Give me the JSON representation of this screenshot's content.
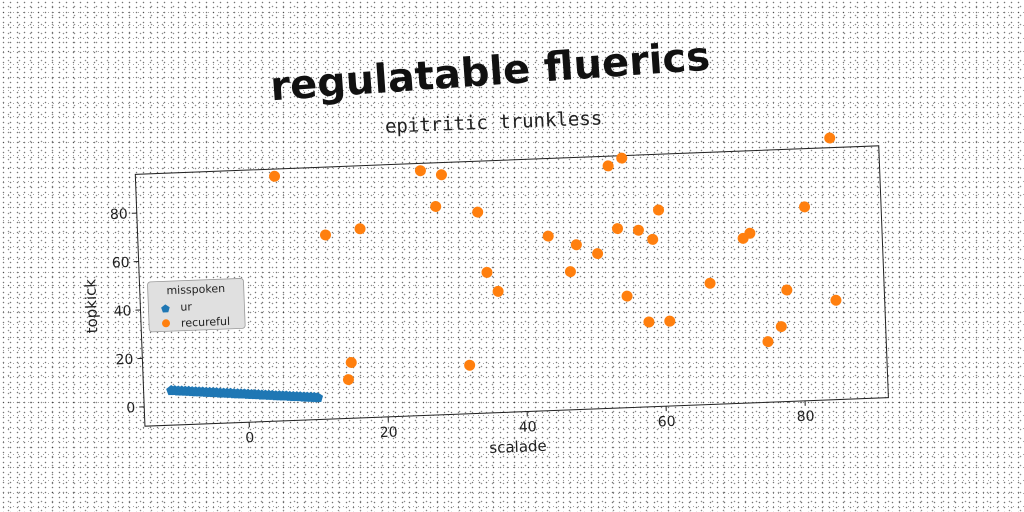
{
  "chart_data": {
    "type": "scatter",
    "title": "regulatable fluerics",
    "subtitle": "epitritic trunkless",
    "xlabel": "scalade",
    "ylabel": "topkick",
    "xlim": [
      -15,
      92
    ],
    "ylim": [
      -8,
      96
    ],
    "xticks": [
      0,
      20,
      40,
      60,
      80
    ],
    "yticks": [
      0,
      20,
      40,
      60,
      80
    ],
    "grid": false,
    "legend": {
      "title": "misspoken",
      "placement": "center-left",
      "entries": [
        "ur",
        "recureful"
      ]
    },
    "series": [
      {
        "name": "ur",
        "color": "#1f77b4",
        "marker": "pentagon",
        "x": [
          -11,
          -10.5,
          -10,
          -9.5,
          -9,
          -8.5,
          -8,
          -7.5,
          -7,
          -6.5,
          -6,
          -5.5,
          -5,
          -4.5,
          -4,
          -3.5,
          -3,
          -2.5,
          -2,
          -1.5,
          -1,
          -0.5,
          0,
          0.5,
          1,
          1.5,
          2,
          2.5,
          3,
          3.5,
          4,
          4.5,
          5,
          5.5,
          6,
          6.5,
          7,
          7.5,
          8,
          8.5,
          9,
          9.5,
          10
        ],
        "y": [
          6.3,
          6.2,
          6.0,
          5.9,
          5.8,
          5.7,
          5.5,
          5.4,
          5.3,
          5.2,
          5.0,
          4.9,
          4.8,
          4.7,
          4.5,
          4.4,
          4.3,
          4.2,
          4.0,
          3.9,
          3.8,
          3.7,
          3.5,
          3.4,
          3.3,
          3.2,
          3.0,
          2.9,
          2.8,
          2.7,
          2.5,
          2.4,
          2.3,
          2.2,
          2.0,
          1.9,
          1.8,
          1.7,
          1.5,
          1.4,
          1.3,
          1.2,
          1.0
        ]
      },
      {
        "name": "recureful",
        "color": "#ff7f0e",
        "marker": "circle",
        "points": [
          [
            5,
            93
          ],
          [
            26,
            93
          ],
          [
            29,
            91
          ],
          [
            28,
            78
          ],
          [
            34,
            75
          ],
          [
            12,
            68
          ],
          [
            17,
            70
          ],
          [
            14.5,
            8
          ],
          [
            15,
            15
          ],
          [
            32,
            12
          ],
          [
            35,
            50
          ],
          [
            36.5,
            42
          ],
          [
            44,
            64
          ],
          [
            48,
            60
          ],
          [
            47,
            49
          ],
          [
            51,
            56
          ],
          [
            53,
            92
          ],
          [
            55,
            95
          ],
          [
            54,
            66
          ],
          [
            55,
            38
          ],
          [
            57,
            65
          ],
          [
            58,
            27
          ],
          [
            59,
            61
          ],
          [
            60,
            73
          ],
          [
            61,
            27
          ],
          [
            67,
            42
          ],
          [
            72,
            60
          ],
          [
            73,
            62
          ],
          [
            75,
            17
          ],
          [
            77,
            23
          ],
          [
            78,
            38
          ],
          [
            81,
            72
          ],
          [
            85,
            100
          ],
          [
            85,
            33
          ]
        ]
      }
    ]
  }
}
